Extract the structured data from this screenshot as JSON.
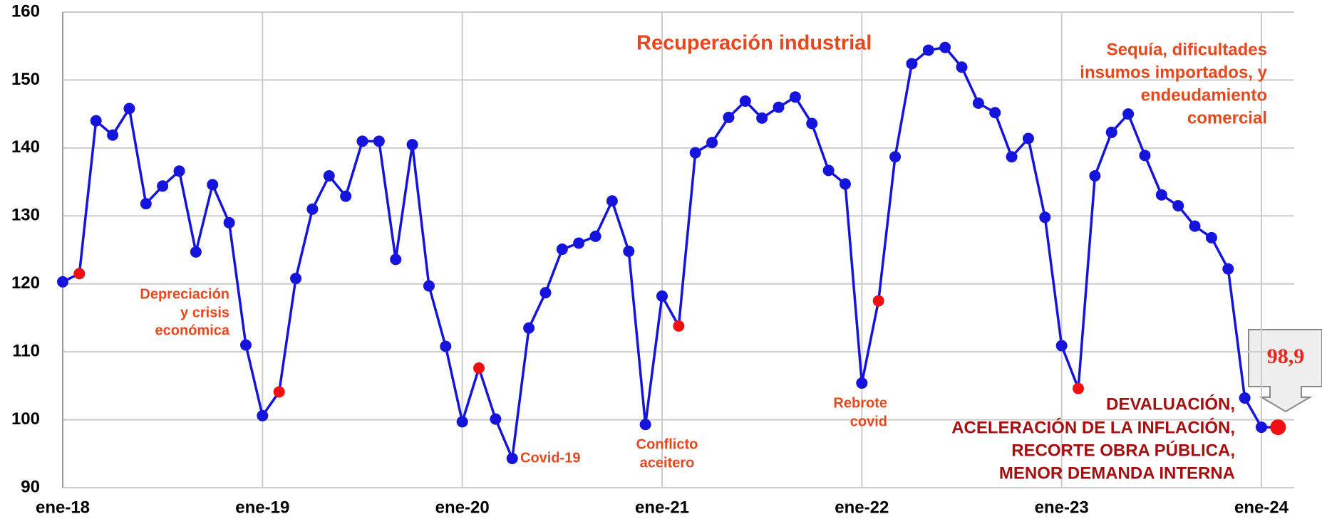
{
  "chart_data": {
    "type": "line",
    "categories": [
      "ene-18",
      null,
      null,
      null,
      null,
      null,
      null,
      null,
      null,
      null,
      null,
      null,
      "ene-19",
      null,
      null,
      null,
      null,
      null,
      null,
      null,
      null,
      null,
      null,
      null,
      "ene-20",
      null,
      null,
      null,
      null,
      null,
      null,
      null,
      null,
      null,
      null,
      null,
      "ene-21",
      null,
      null,
      null,
      null,
      null,
      null,
      null,
      null,
      null,
      null,
      null,
      "ene-22",
      null,
      null,
      null,
      null,
      null,
      null,
      null,
      null,
      null,
      null,
      null,
      "ene-23",
      null,
      null,
      null,
      null,
      null,
      null,
      null,
      null,
      null,
      null,
      null,
      "ene-24",
      null
    ],
    "series": [
      {
        "color": "#1414dc",
        "values": [
          120.3,
          121.5,
          144,
          141.9,
          145.8,
          131.8,
          134.4,
          136.6,
          124.7,
          134.6,
          129,
          111,
          100.6,
          104.1,
          120.8,
          131,
          135.9,
          132.9,
          141,
          141,
          123.6,
          140.5,
          119.7,
          110.8,
          99.7,
          107.6,
          100.1,
          94.3,
          113.5,
          118.7,
          125.1,
          126,
          127,
          132.2,
          124.8,
          99.3,
          118.2,
          113.8,
          139.3,
          140.8,
          144.5,
          146.9,
          144.4,
          146,
          147.5,
          143.6,
          136.7,
          134.7,
          105.4,
          117.5,
          138.7,
          152.4,
          154.4,
          154.8,
          151.9,
          146.6,
          145.2,
          138.7,
          141.4,
          129.8,
          110.9,
          104.6,
          135.9,
          142.3,
          145,
          138.9,
          133.1,
          131.5,
          128.5,
          126.8,
          122.2,
          103.2,
          98.9,
          98.9
        ]
      }
    ],
    "highlight": {
      "color": "#f01010",
      "points": [
        1,
        13,
        25,
        37,
        49,
        61,
        73
      ]
    },
    "ylim": [
      90,
      160
    ],
    "yticks": [
      90,
      100,
      110,
      120,
      130,
      140,
      150,
      160
    ],
    "grid": true,
    "annotations": [
      {
        "lines": [
          "Recuperación  industrial"
        ]
      },
      {
        "lines": [
          "Sequía, dificultades",
          "insumos importados, y",
          "endeudamiento",
          "comercial"
        ]
      },
      {
        "lines": [
          "Depreciación",
          "y crisis",
          "económica"
        ]
      },
      {
        "lines": [
          "Covid-19"
        ]
      },
      {
        "lines": [
          "Conflicto",
          "aceitero"
        ]
      },
      {
        "lines": [
          "Rebrote",
          "covid"
        ]
      },
      {
        "lines": [
          "DEVALUACIÓN,",
          "ACELERACIÓN DE LA INFLACIÓN,",
          "RECORTE OBRA PÚBLICA,",
          "MENOR DEMANDA INTERNA"
        ]
      },
      {
        "lines": [
          "98,9"
        ]
      }
    ]
  }
}
